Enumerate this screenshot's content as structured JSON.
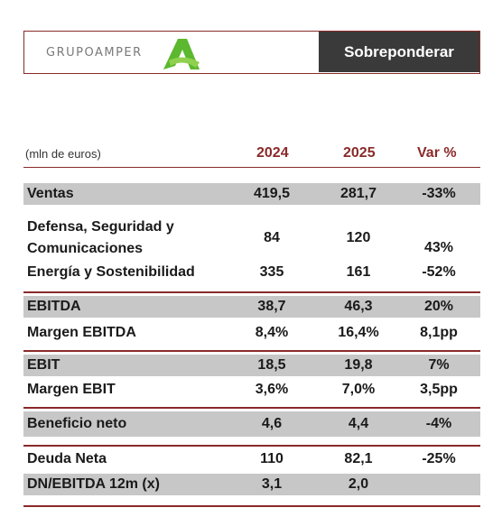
{
  "header": {
    "brand": "GRUPOAMPER",
    "rating": "Sobreponderar"
  },
  "table": {
    "unit": "(mln de euros)",
    "col_2024": "2024",
    "col_2025": "2025",
    "col_var": "Var %",
    "rows": [
      {
        "label": "Ventas",
        "y2024": "419,5",
        "y2025": "281,7",
        "var": "-33%"
      },
      {
        "label1": "Defensa, Seguridad y",
        "label2": "Comunicaciones",
        "y2024": "84",
        "y2025": "120",
        "var": "43%"
      },
      {
        "label": "Energía y Sostenibilidad",
        "y2024": "335",
        "y2025": "161",
        "var": "-52%"
      },
      {
        "label": "EBITDA",
        "y2024": "38,7",
        "y2025": "46,3",
        "var": "20%"
      },
      {
        "label": "Margen EBITDA",
        "y2024": "8,4%",
        "y2025": "16,4%",
        "var": "8,1pp"
      },
      {
        "label": "EBIT",
        "y2024": "18,5",
        "y2025": "19,8",
        "var": "7%"
      },
      {
        "label": "Margen EBIT",
        "y2024": "3,6%",
        "y2025": "7,0%",
        "var": "3,5pp"
      },
      {
        "label": "Beneficio neto",
        "y2024": "4,6",
        "y2025": "4,4",
        "var": "-4%"
      },
      {
        "label": "Deuda Neta",
        "y2024": "110",
        "y2025": "82,1",
        "var": "-25%"
      },
      {
        "label": "DN/EBITDA 12m (x)",
        "y2024": "3,1",
        "y2025": "2,0",
        "var": ""
      }
    ]
  },
  "colors": {
    "accent": "#8a2a2a",
    "logo_green": "#5cb82e",
    "rating_bg": "#3a3a3a",
    "row_gray": "#c7c7c7"
  }
}
